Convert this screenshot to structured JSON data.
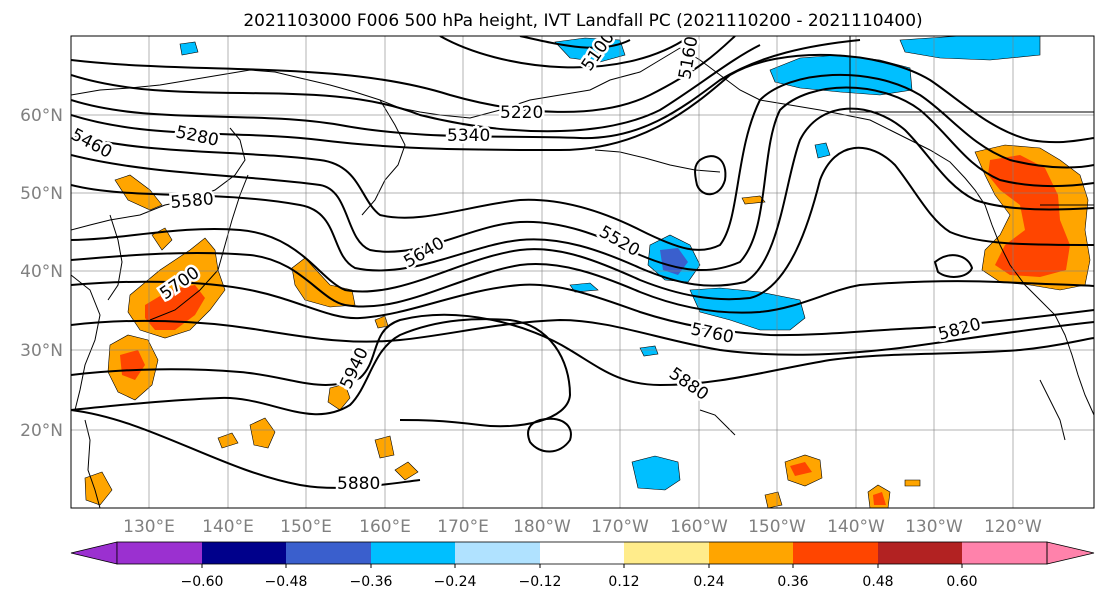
{
  "title": "2021103000 F006 500 hPa height, IVT Landfall PC (2021110200 - 2021110400)",
  "map": {
    "lat_ticks": [
      "20°N",
      "30°N",
      "40°N",
      "50°N",
      "60°N"
    ],
    "lon_ticks": [
      "130°E",
      "140°E",
      "150°E",
      "160°E",
      "170°E",
      "180°W",
      "170°W",
      "160°W",
      "150°W",
      "140°W",
      "130°W",
      "120°W"
    ],
    "contour_color": "#000000",
    "contour_labels": [
      {
        "text": "5220"
      },
      {
        "text": "5280"
      },
      {
        "text": "5340"
      },
      {
        "text": "5460"
      },
      {
        "text": "5520"
      },
      {
        "text": "5580"
      },
      {
        "text": "5640"
      },
      {
        "text": "5700"
      },
      {
        "text": "5760"
      },
      {
        "text": "5820"
      },
      {
        "text": "5880"
      },
      {
        "text": "5880"
      },
      {
        "text": "5940"
      },
      {
        "text": "5100"
      },
      {
        "text": "5160"
      }
    ]
  },
  "colorbar": {
    "ticks": [
      "−0.60",
      "−0.48",
      "−0.36",
      "−0.24",
      "−0.12",
      "0.12",
      "0.24",
      "0.36",
      "0.48",
      "0.60"
    ],
    "colors": [
      "#9b30d0",
      "#00008b",
      "#3a5fcd",
      "#00bfff",
      "#b0e2ff",
      "#ffffff",
      "#ffec8b",
      "#ffa500",
      "#ff4500",
      "#b22222",
      "#ff82ab"
    ]
  }
}
